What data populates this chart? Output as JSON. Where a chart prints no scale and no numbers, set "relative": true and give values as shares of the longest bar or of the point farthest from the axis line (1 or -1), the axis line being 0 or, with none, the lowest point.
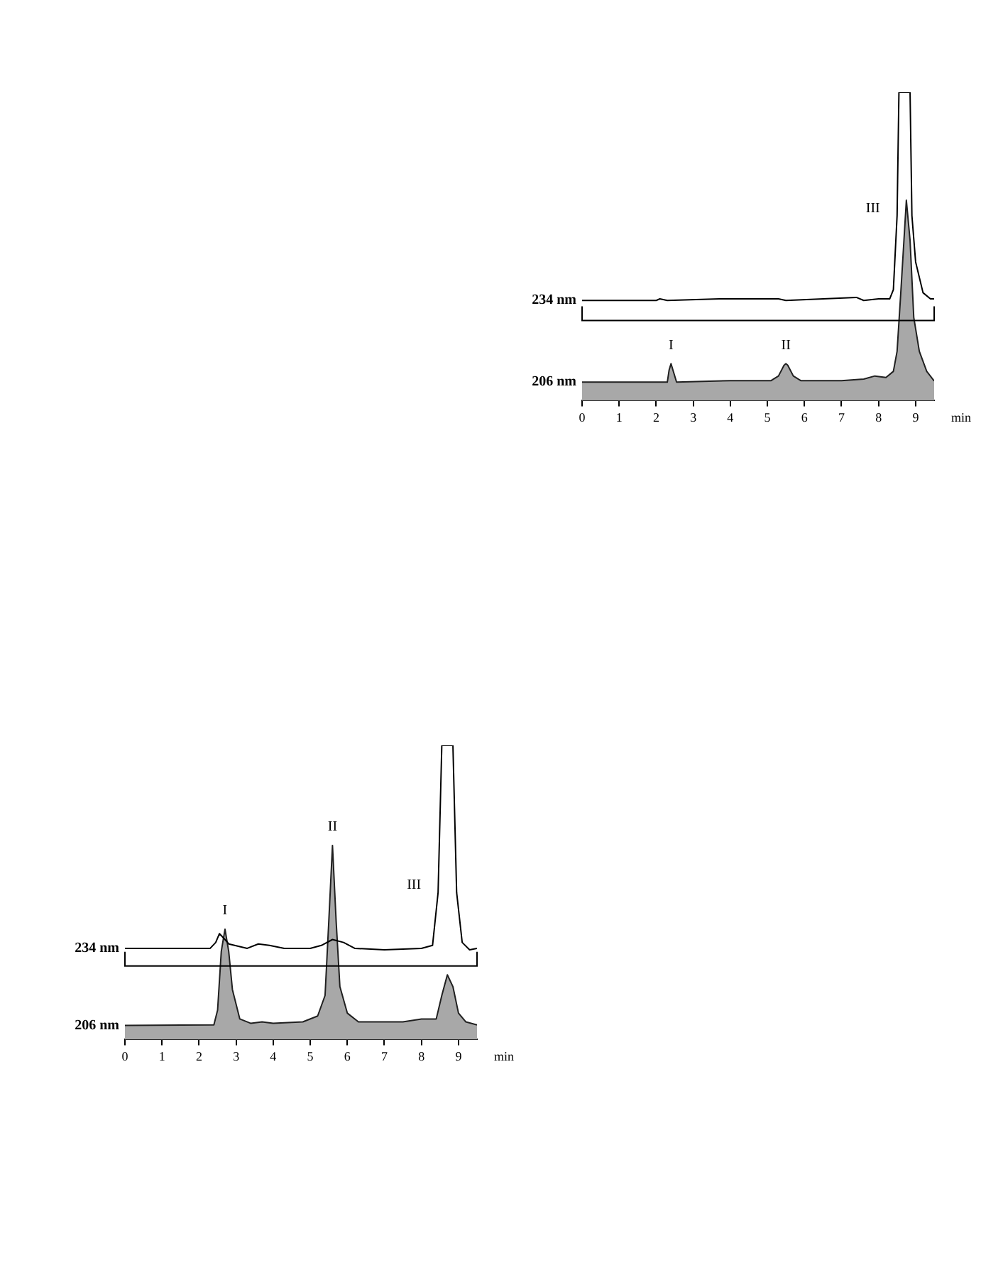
{
  "chart_data": [
    {
      "type": "area",
      "relative": true,
      "xlim": [
        0,
        9.5
      ],
      "xticks": [
        0,
        1,
        2,
        3,
        4,
        5,
        6,
        7,
        8,
        9
      ],
      "xlabel": "min",
      "tick_labels": "x",
      "grid": false,
      "legend": false,
      "marker": "none",
      "series": [
        {
          "name": "234 nm",
          "type": "line",
          "color": "#000000",
          "x": [
            0,
            2.0,
            2.1,
            2.3,
            3.7,
            5.3,
            5.5,
            7.4,
            7.6,
            8.0,
            8.3,
            8.4,
            8.5,
            8.55,
            8.85,
            8.9,
            9.0,
            9.2,
            9.4,
            9.5
          ],
          "values": [
            0.325,
            0.325,
            0.33,
            0.325,
            0.33,
            0.33,
            0.325,
            0.335,
            0.325,
            0.33,
            0.33,
            0.36,
            0.6,
            1,
            1,
            0.6,
            0.45,
            0.35,
            0.33,
            0.33
          ]
        },
        {
          "name": "206 nm",
          "color": "#a8a8a8",
          "x": [
            0,
            2.3,
            2.35,
            2.4,
            2.45,
            2.55,
            4.0,
            5.1,
            5.3,
            5.45,
            5.5,
            5.55,
            5.7,
            5.9,
            7.0,
            7.6,
            7.9,
            8.2,
            8.4,
            8.5,
            8.6,
            8.75,
            8.85,
            8.95,
            9.1,
            9.3,
            9.5
          ],
          "values": [
            0.06,
            0.06,
            0.1,
            0.12,
            0.1,
            0.06,
            0.065,
            0.065,
            0.08,
            0.115,
            0.12,
            0.115,
            0.08,
            0.065,
            0.065,
            0.07,
            0.08,
            0.075,
            0.095,
            0.16,
            0.35,
            0.65,
            0.52,
            0.27,
            0.16,
            0.095,
            0.064
          ]
        }
      ],
      "ref_lines": [
        {
          "axis": "y",
          "value": 0.26,
          "color": "#000000"
        }
      ],
      "annotations": [
        {
          "text": "I",
          "x": 2.4,
          "y": 0.12
        },
        {
          "text": "II",
          "x": 5.5,
          "y": 0.12
        },
        {
          "text": "III",
          "x": 8.5,
          "y": 0.6
        }
      ]
    },
    {
      "type": "area",
      "relative": true,
      "xlim": [
        0,
        9.5
      ],
      "xticks": [
        0,
        1,
        2,
        3,
        4,
        5,
        6,
        7,
        8,
        9
      ],
      "xlabel": "min",
      "tick_labels": "x",
      "grid": false,
      "legend": false,
      "marker": "none",
      "series": [
        {
          "name": "234 nm",
          "type": "line",
          "color": "#000000",
          "x": [
            0,
            2.3,
            2.45,
            2.55,
            2.7,
            2.8,
            3.3,
            3.6,
            3.9,
            4.3,
            5.0,
            5.3,
            5.6,
            5.9,
            6.2,
            7.0,
            8.0,
            8.3,
            8.45,
            8.55,
            8.85,
            8.95,
            9.1,
            9.3,
            9.5
          ],
          "values": [
            0.31,
            0.31,
            0.33,
            0.36,
            0.34,
            0.325,
            0.31,
            0.325,
            0.32,
            0.31,
            0.31,
            0.32,
            0.34,
            0.33,
            0.31,
            0.305,
            0.31,
            0.32,
            0.5,
            1,
            1,
            0.5,
            0.33,
            0.305,
            0.31
          ]
        },
        {
          "name": "206 nm",
          "color": "#a8a8a8",
          "x": [
            0,
            2.4,
            2.5,
            2.6,
            2.7,
            2.8,
            2.9,
            3.1,
            3.4,
            3.7,
            4.0,
            4.8,
            5.2,
            5.4,
            5.5,
            5.6,
            5.7,
            5.8,
            6.0,
            6.3,
            7.5,
            8.0,
            8.4,
            8.55,
            8.7,
            8.85,
            9.0,
            9.2,
            9.5
          ],
          "values": [
            0.048,
            0.05,
            0.1,
            0.3,
            0.375,
            0.3,
            0.17,
            0.07,
            0.055,
            0.06,
            0.055,
            0.06,
            0.08,
            0.15,
            0.4,
            0.66,
            0.4,
            0.18,
            0.09,
            0.06,
            0.06,
            0.07,
            0.07,
            0.15,
            0.22,
            0.18,
            0.09,
            0.06,
            0.05
          ]
        }
      ],
      "ref_lines": [
        {
          "axis": "y",
          "value": 0.25,
          "color": "#000000"
        }
      ],
      "annotations": [
        {
          "text": "I",
          "x": 2.7,
          "y": 0.375
        },
        {
          "text": "II",
          "x": 5.6,
          "y": 0.66
        },
        {
          "text": "III",
          "x": 8.45,
          "y": 0.5
        }
      ]
    }
  ]
}
